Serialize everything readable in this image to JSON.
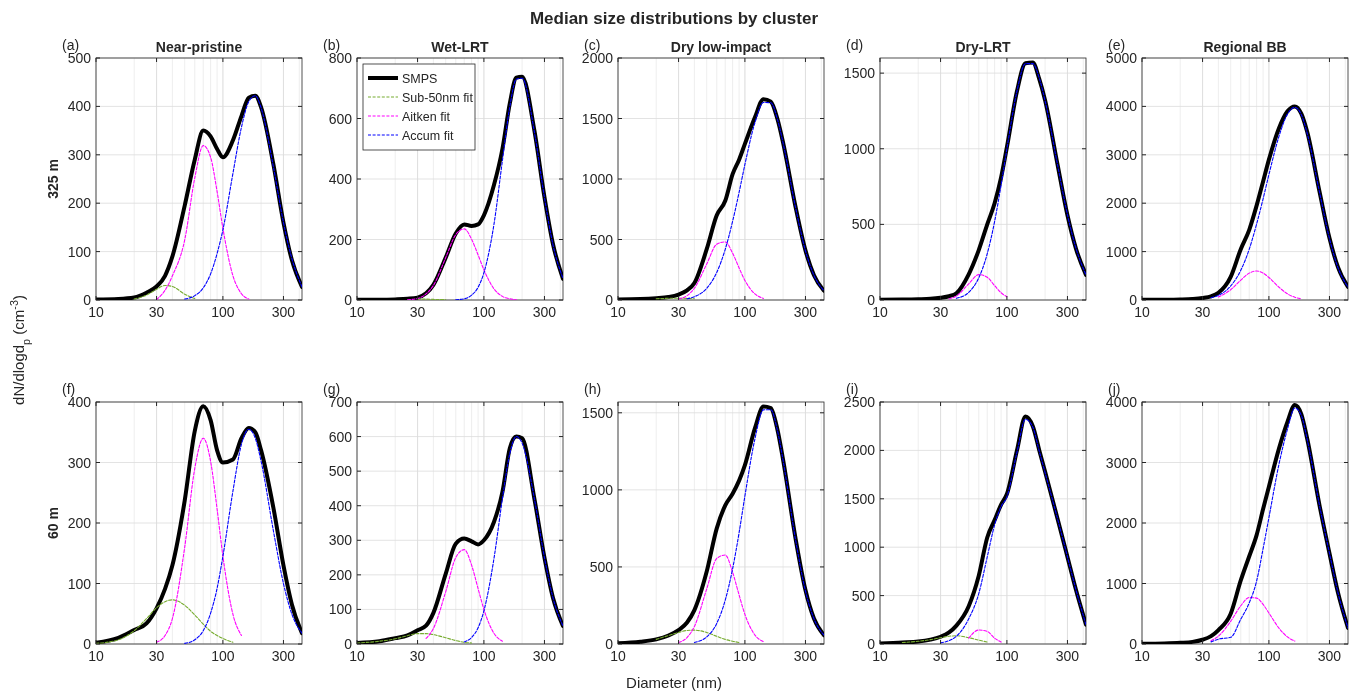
{
  "chart_data": [
    {
      "type": "other",
      "title": "Median size distributions by cluster",
      "xlabel": "Diameter (nm)",
      "ylabel": "dN/dlogd$_{p}$ (cm$^{-3}$)"
    },
    {
      "type": "line",
      "title": "Near-pristine",
      "ylabel": "325 m",
      "annotations": [
        "(a)"
      ],
      "log": "x",
      "grid": true,
      "xlim": [
        10,
        420
      ],
      "xticks": [
        10,
        30,
        100,
        300
      ],
      "ylim": [
        0,
        500
      ],
      "yticks": [
        0,
        100,
        200,
        300,
        400,
        500
      ],
      "x": [
        10,
        15,
        20,
        25,
        30,
        35,
        40,
        50,
        60,
        70,
        80,
        90,
        100,
        120,
        140,
        160,
        180,
        200,
        250,
        300,
        350,
        420
      ],
      "series": [
        {
          "color": "#000000",
          "line_style": "solid",
          "values": [
            1,
            2,
            5,
            15,
            28,
            50,
            90,
            195,
            290,
            350,
            338,
            312,
            295,
            330,
            380,
            418,
            422,
            398,
            280,
            160,
            82,
            27
          ]
        },
        {
          "color": "#77ac30",
          "line_style": "dashed",
          "values": [
            null,
            null,
            2,
            10,
            22,
            30,
            28,
            12,
            3,
            null,
            null,
            null,
            null,
            null,
            null,
            null,
            null,
            null,
            null,
            null,
            null,
            null
          ]
        },
        {
          "color": "#ff00ff",
          "line_style": "dashed",
          "values": [
            null,
            null,
            null,
            null,
            1,
            20,
            50,
            124,
            252,
            319,
            295,
            224,
            148,
            50,
            13,
            2,
            null,
            null,
            null,
            null,
            null,
            null
          ]
        },
        {
          "color": "#0000ff",
          "line_style": "dashed",
          "values": [
            null,
            null,
            null,
            null,
            null,
            null,
            null,
            2,
            9,
            25,
            54,
            96,
            145,
            262,
            357,
            410,
            422,
            397,
            275,
            160,
            85,
            27
          ]
        }
      ]
    },
    {
      "type": "line",
      "title": "Wet-LRT",
      "annotations": [
        "(b)"
      ],
      "log": "x",
      "grid": true,
      "legend": "top left",
      "xlim": [
        10,
        420
      ],
      "xticks": [
        10,
        30,
        100,
        300
      ],
      "ylim": [
        0,
        800
      ],
      "yticks": [
        0,
        200,
        400,
        600,
        800
      ],
      "x": [
        10,
        15,
        20,
        25,
        30,
        35,
        40,
        50,
        60,
        70,
        80,
        90,
        100,
        120,
        140,
        160,
        180,
        200,
        250,
        300,
        350,
        420
      ],
      "series": [
        {
          "name": "SMPS",
          "color": "#000000",
          "line_style": "solid",
          "values": [
            1,
            1,
            2,
            4,
            8,
            22,
            50,
            140,
            220,
            250,
            245,
            250,
            280,
            380,
            500,
            650,
            735,
            738,
            560,
            340,
            185,
            70
          ]
        },
        {
          "name": "Sub-50nm fit",
          "color": "#77ac30",
          "line_style": "dashed",
          "values": [
            null,
            null,
            null,
            null,
            3,
            3,
            2,
            1,
            null,
            null,
            null,
            null,
            null,
            null,
            null,
            null,
            null,
            null,
            null,
            null,
            null,
            null
          ]
        },
        {
          "name": "Aitken fit",
          "color": "#ff00ff",
          "line_style": "dashed",
          "values": [
            null,
            null,
            null,
            1,
            5,
            20,
            48,
            140,
            216,
            235,
            201,
            149,
            100,
            37,
            12,
            4,
            1,
            null,
            null,
            null,
            null,
            null
          ]
        },
        {
          "name": "Accum fit",
          "color": "#0000ff",
          "line_style": "dashed",
          "values": [
            null,
            null,
            null,
            null,
            null,
            null,
            null,
            null,
            1,
            4,
            16,
            42,
            90,
            250,
            462,
            639,
            730,
            733,
            555,
            339,
            183,
            71
          ]
        }
      ]
    },
    {
      "type": "line",
      "title": "Dry low-impact",
      "annotations": [
        "(c)"
      ],
      "log": "x",
      "grid": true,
      "xlim": [
        10,
        420
      ],
      "xticks": [
        10,
        30,
        100,
        300
      ],
      "ylim": [
        0,
        2000
      ],
      "yticks": [
        0,
        500,
        1000,
        1500,
        2000
      ],
      "x": [
        10,
        15,
        20,
        25,
        30,
        35,
        40,
        50,
        60,
        70,
        80,
        90,
        100,
        120,
        140,
        160,
        180,
        200,
        250,
        300,
        350,
        420
      ],
      "series": [
        {
          "color": "#000000",
          "line_style": "solid",
          "values": [
            5,
            8,
            15,
            25,
            45,
            80,
            140,
            420,
            700,
            820,
            1040,
            1160,
            1290,
            1510,
            1660,
            1640,
            1500,
            1300,
            775,
            410,
            205,
            76
          ]
        },
        {
          "color": "#77ac30",
          "line_style": "dashed",
          "values": [
            null,
            null,
            10,
            14,
            15,
            13,
            10,
            null,
            null,
            null,
            null,
            null,
            null,
            null,
            null,
            null,
            null,
            null,
            null,
            null,
            null,
            null
          ]
        },
        {
          "color": "#ff00ff",
          "line_style": "dashed",
          "values": [
            null,
            null,
            null,
            null,
            9,
            36,
            97,
            297,
            461,
            480,
            387,
            265,
            162,
            50,
            13,
            null,
            null,
            null,
            null,
            null,
            null,
            null
          ]
        },
        {
          "color": "#0000ff",
          "line_style": "dashed",
          "values": [
            null,
            null,
            null,
            null,
            null,
            11,
            27,
            96,
            228,
            419,
            650,
            890,
            1120,
            1466,
            1632,
            1630,
            1498,
            1297,
            771,
            407,
            204,
            76
          ]
        }
      ]
    },
    {
      "type": "line",
      "title": "Dry-LRT",
      "annotations": [
        "(d)"
      ],
      "log": "x",
      "grid": true,
      "xlim": [
        10,
        420
      ],
      "xticks": [
        10,
        30,
        100,
        300
      ],
      "ylim": [
        0,
        1600
      ],
      "yticks": [
        0,
        500,
        1000,
        1500
      ],
      "x": [
        10,
        15,
        20,
        25,
        30,
        35,
        40,
        50,
        60,
        70,
        80,
        90,
        100,
        120,
        140,
        160,
        180,
        200,
        250,
        300,
        350,
        420
      ],
      "series": [
        {
          "color": "#000000",
          "line_style": "solid",
          "values": [
            2,
            3,
            5,
            8,
            15,
            25,
            45,
            170,
            330,
            500,
            640,
            810,
            1010,
            1380,
            1565,
            1570,
            1460,
            1320,
            900,
            560,
            340,
            166
          ]
        },
        {
          "color": "#ff00ff",
          "line_style": "dashed",
          "values": [
            null,
            null,
            null,
            null,
            null,
            7,
            26,
            107,
            168,
            150,
            95,
            48,
            21,
            null,
            null,
            null,
            null,
            null,
            null,
            null,
            null,
            null
          ]
        },
        {
          "color": "#0000ff",
          "line_style": "dashed",
          "values": [
            null,
            null,
            null,
            null,
            null,
            null,
            11,
            51,
            146,
            306,
            519,
            760,
            1000,
            1380,
            1563,
            1563,
            1466,
            1317,
            899,
            564,
            342,
            166
          ]
        }
      ]
    },
    {
      "type": "line",
      "title": "Regional BB",
      "annotations": [
        "(e)"
      ],
      "log": "x",
      "grid": true,
      "xlim": [
        10,
        420
      ],
      "xticks": [
        10,
        30,
        100,
        300
      ],
      "ylim": [
        0,
        5000
      ],
      "yticks": [
        0,
        1000,
        2000,
        3000,
        4000,
        5000
      ],
      "x": [
        10,
        15,
        20,
        25,
        30,
        35,
        40,
        50,
        60,
        70,
        80,
        90,
        100,
        120,
        140,
        160,
        180,
        200,
        250,
        300,
        350,
        420
      ],
      "series": [
        {
          "color": "#000000",
          "line_style": "solid",
          "values": [
            3,
            5,
            10,
            20,
            40,
            75,
            150,
            480,
            1050,
            1450,
            1950,
            2450,
            2900,
            3550,
            3900,
            4000,
            3850,
            3480,
            2250,
            1280,
            680,
            270
          ]
        },
        {
          "color": "#ff00ff",
          "line_style": "dashed",
          "values": [
            null,
            null,
            null,
            null,
            null,
            null,
            61,
            212,
            410,
            555,
            600,
            557,
            465,
            264,
            127,
            56,
            24,
            null,
            null,
            null,
            null,
            null
          ]
        },
        {
          "color": "#0000ff",
          "line_style": "dashed",
          "values": [
            null,
            null,
            null,
            null,
            null,
            45,
            96,
            290,
            613,
            1050,
            1570,
            2090,
            2590,
            3380,
            3840,
            3980,
            3830,
            3450,
            2240,
            1270,
            670,
            268
          ]
        }
      ]
    },
    {
      "type": "line",
      "ylabel": "60 m",
      "annotations": [
        "(f)"
      ],
      "log": "x",
      "grid": true,
      "xlim": [
        10,
        420
      ],
      "xticks": [
        10,
        30,
        100,
        300
      ],
      "ylim": [
        0,
        400
      ],
      "yticks": [
        0,
        100,
        200,
        300,
        400
      ],
      "x": [
        10,
        15,
        20,
        25,
        30,
        35,
        40,
        50,
        60,
        70,
        80,
        90,
        100,
        120,
        140,
        160,
        180,
        200,
        250,
        300,
        350,
        420
      ],
      "series": [
        {
          "color": "#000000",
          "line_style": "solid",
          "values": [
            2,
            10,
            23,
            34,
            59,
            91,
            130,
            237,
            352,
            393,
            370,
            320,
            300,
            305,
            340,
            357,
            350,
            320,
            225,
            130,
            65,
            18
          ]
        },
        {
          "color": "#77ac30",
          "line_style": "dashed",
          "values": [
            1,
            7,
            22,
            42,
            60,
            70,
            73,
            64,
            48,
            33,
            21,
            14,
            9,
            3,
            null,
            null,
            null,
            null,
            null,
            null,
            null,
            null
          ]
        },
        {
          "color": "#ff00ff",
          "line_style": "dashed",
          "values": [
            null,
            null,
            null,
            null,
            3,
            14,
            42,
            160,
            290,
            340,
            302,
            223,
            145,
            49,
            14,
            null,
            null,
            null,
            null,
            null,
            null,
            null
          ]
        },
        {
          "color": "#0000ff",
          "line_style": "dashed",
          "values": [
            null,
            null,
            null,
            null,
            null,
            null,
            null,
            1,
            7,
            22,
            51,
            92,
            145,
            253,
            330,
            355,
            340,
            302,
            187,
            100,
            49,
            18
          ]
        }
      ]
    },
    {
      "type": "line",
      "annotations": [
        "(g)"
      ],
      "log": "x",
      "grid": true,
      "xlim": [
        10,
        420
      ],
      "xticks": [
        10,
        30,
        100,
        300
      ],
      "ylim": [
        0,
        700
      ],
      "yticks": [
        0,
        100,
        200,
        300,
        400,
        500,
        600,
        700
      ],
      "x": [
        10,
        15,
        20,
        25,
        30,
        35,
        40,
        50,
        60,
        70,
        80,
        90,
        100,
        120,
        140,
        160,
        180,
        200,
        250,
        300,
        350,
        420
      ],
      "series": [
        {
          "color": "#000000",
          "line_style": "solid",
          "values": [
            3,
            8,
            17,
            25,
            40,
            53,
            90,
            203,
            290,
            305,
            297,
            288,
            300,
            353,
            440,
            566,
            600,
            595,
            420,
            250,
            134,
            52
          ]
        },
        {
          "color": "#77ac30",
          "line_style": "dashed",
          "values": [
            3,
            8,
            15,
            24,
            30,
            30,
            27,
            18,
            10,
            5,
            3,
            null,
            null,
            null,
            null,
            null,
            null,
            null,
            null,
            null,
            null,
            null
          ]
        },
        {
          "color": "#ff00ff",
          "line_style": "dashed",
          "values": [
            null,
            null,
            null,
            null,
            null,
            16,
            45,
            151,
            250,
            273,
            228,
            160,
            100,
            31,
            8,
            null,
            null,
            null,
            null,
            null,
            null,
            null
          ]
        },
        {
          "color": "#0000ff",
          "line_style": "dashed",
          "values": [
            null,
            null,
            null,
            null,
            null,
            null,
            null,
            null,
            null,
            6,
            19,
            47,
            96,
            247,
            421,
            551,
            600,
            581,
            420,
            250,
            134,
            52
          ]
        }
      ]
    },
    {
      "type": "line",
      "annotations": [
        "(h)"
      ],
      "log": "x",
      "grid": true,
      "xlim": [
        10,
        420
      ],
      "xticks": [
        10,
        30,
        100,
        300
      ],
      "ylim": [
        0,
        1570
      ],
      "yticks": [
        0,
        500,
        1000,
        1500
      ],
      "x": [
        10,
        15,
        20,
        25,
        30,
        35,
        40,
        50,
        60,
        70,
        80,
        90,
        100,
        120,
        140,
        160,
        180,
        200,
        250,
        300,
        350,
        420
      ],
      "series": [
        {
          "color": "#000000",
          "line_style": "solid",
          "values": [
            5,
            15,
            30,
            55,
            90,
            140,
            220,
            470,
            750,
            900,
            975,
            1060,
            1160,
            1400,
            1540,
            1530,
            1395,
            1195,
            690,
            350,
            165,
            57
          ]
        },
        {
          "color": "#77ac30",
          "line_style": "dashed",
          "values": [
            null,
            null,
            30,
            55,
            75,
            88,
            90,
            75,
            50,
            30,
            18,
            10,
            null,
            null,
            null,
            null,
            null,
            null,
            null,
            null,
            null,
            null
          ]
        },
        {
          "color": "#ff00ff",
          "line_style": "dashed",
          "values": [
            null,
            null,
            null,
            null,
            10,
            42,
            114,
            357,
            555,
            577,
            465,
            318,
            192,
            58,
            15,
            null,
            null,
            null,
            null,
            null,
            null,
            null
          ]
        },
        {
          "color": "#0000ff",
          "line_style": "dashed",
          "values": [
            null,
            null,
            null,
            null,
            null,
            null,
            10,
            46,
            134,
            285,
            488,
            722,
            960,
            1332,
            1519,
            1520,
            1389,
            1190,
            682,
            344,
            164,
            57
          ]
        }
      ]
    },
    {
      "type": "line",
      "annotations": [
        "(i)"
      ],
      "log": "x",
      "grid": true,
      "xlim": [
        10,
        420
      ],
      "xticks": [
        10,
        30,
        100,
        300
      ],
      "ylim": [
        0,
        2500
      ],
      "yticks": [
        0,
        500,
        1000,
        1500,
        2000,
        2500
      ],
      "x": [
        10,
        15,
        20,
        25,
        30,
        35,
        40,
        50,
        60,
        70,
        80,
        90,
        100,
        120,
        140,
        160,
        180,
        200,
        250,
        300,
        350,
        420
      ],
      "series": [
        {
          "color": "#000000",
          "line_style": "solid",
          "values": [
            5,
            15,
            25,
            45,
            75,
            120,
            190,
            390,
            705,
            1100,
            1280,
            1440,
            1550,
            2000,
            2350,
            2250,
            2000,
            1780,
            1300,
            900,
            560,
            200
          ]
        },
        {
          "color": "#77ac30",
          "line_style": "dashed",
          "values": [
            null,
            15,
            28,
            45,
            65,
            80,
            85,
            65,
            40,
            20,
            null,
            null,
            null,
            null,
            null,
            null,
            null,
            null,
            null,
            null,
            null,
            null
          ]
        },
        {
          "color": "#ff00ff",
          "line_style": "dashed",
          "values": [
            null,
            null,
            null,
            null,
            null,
            null,
            null,
            60,
            145,
            130,
            60,
            20,
            null,
            null,
            null,
            null,
            null,
            null,
            null,
            null,
            null,
            null
          ]
        },
        {
          "color": "#0000ff",
          "line_style": "dashed",
          "values": [
            null,
            null,
            null,
            null,
            12,
            35,
            80,
            260,
            520,
            900,
            1230,
            1420,
            1520,
            1980,
            2320,
            2240,
            1990,
            1770,
            1300,
            900,
            560,
            200
          ]
        }
      ]
    },
    {
      "type": "line",
      "annotations": [
        "(j)"
      ],
      "log": "x",
      "grid": true,
      "xlim": [
        10,
        420
      ],
      "xticks": [
        10,
        30,
        100,
        300
      ],
      "ylim": [
        0,
        4000
      ],
      "yticks": [
        0,
        1000,
        2000,
        3000,
        4000
      ],
      "x": [
        10,
        15,
        20,
        25,
        30,
        35,
        40,
        50,
        60,
        70,
        80,
        90,
        100,
        120,
        140,
        160,
        180,
        200,
        250,
        300,
        350,
        420
      ],
      "series": [
        {
          "color": "#000000",
          "line_style": "solid",
          "values": [
            5,
            10,
            20,
            35,
            70,
            130,
            230,
            500,
            1050,
            1450,
            1800,
            2230,
            2600,
            3230,
            3670,
            3950,
            3800,
            3400,
            2300,
            1500,
            850,
            265
          ]
        },
        {
          "color": "#ff00ff",
          "line_style": "dashed",
          "values": [
            null,
            null,
            null,
            null,
            null,
            55,
            129,
            375,
            632,
            768,
            759,
            654,
            512,
            262,
            117,
            48,
            null,
            null,
            null,
            null,
            null,
            null
          ]
        },
        {
          "color": "#0000ff",
          "line_style": "dashed",
          "values": [
            null,
            null,
            null,
            null,
            null,
            35,
            80,
            110,
            410,
            680,
            1040,
            1576,
            2088,
            2970,
            3550,
            3900,
            3780,
            3390,
            2300,
            1500,
            850,
            265
          ]
        }
      ]
    }
  ]
}
